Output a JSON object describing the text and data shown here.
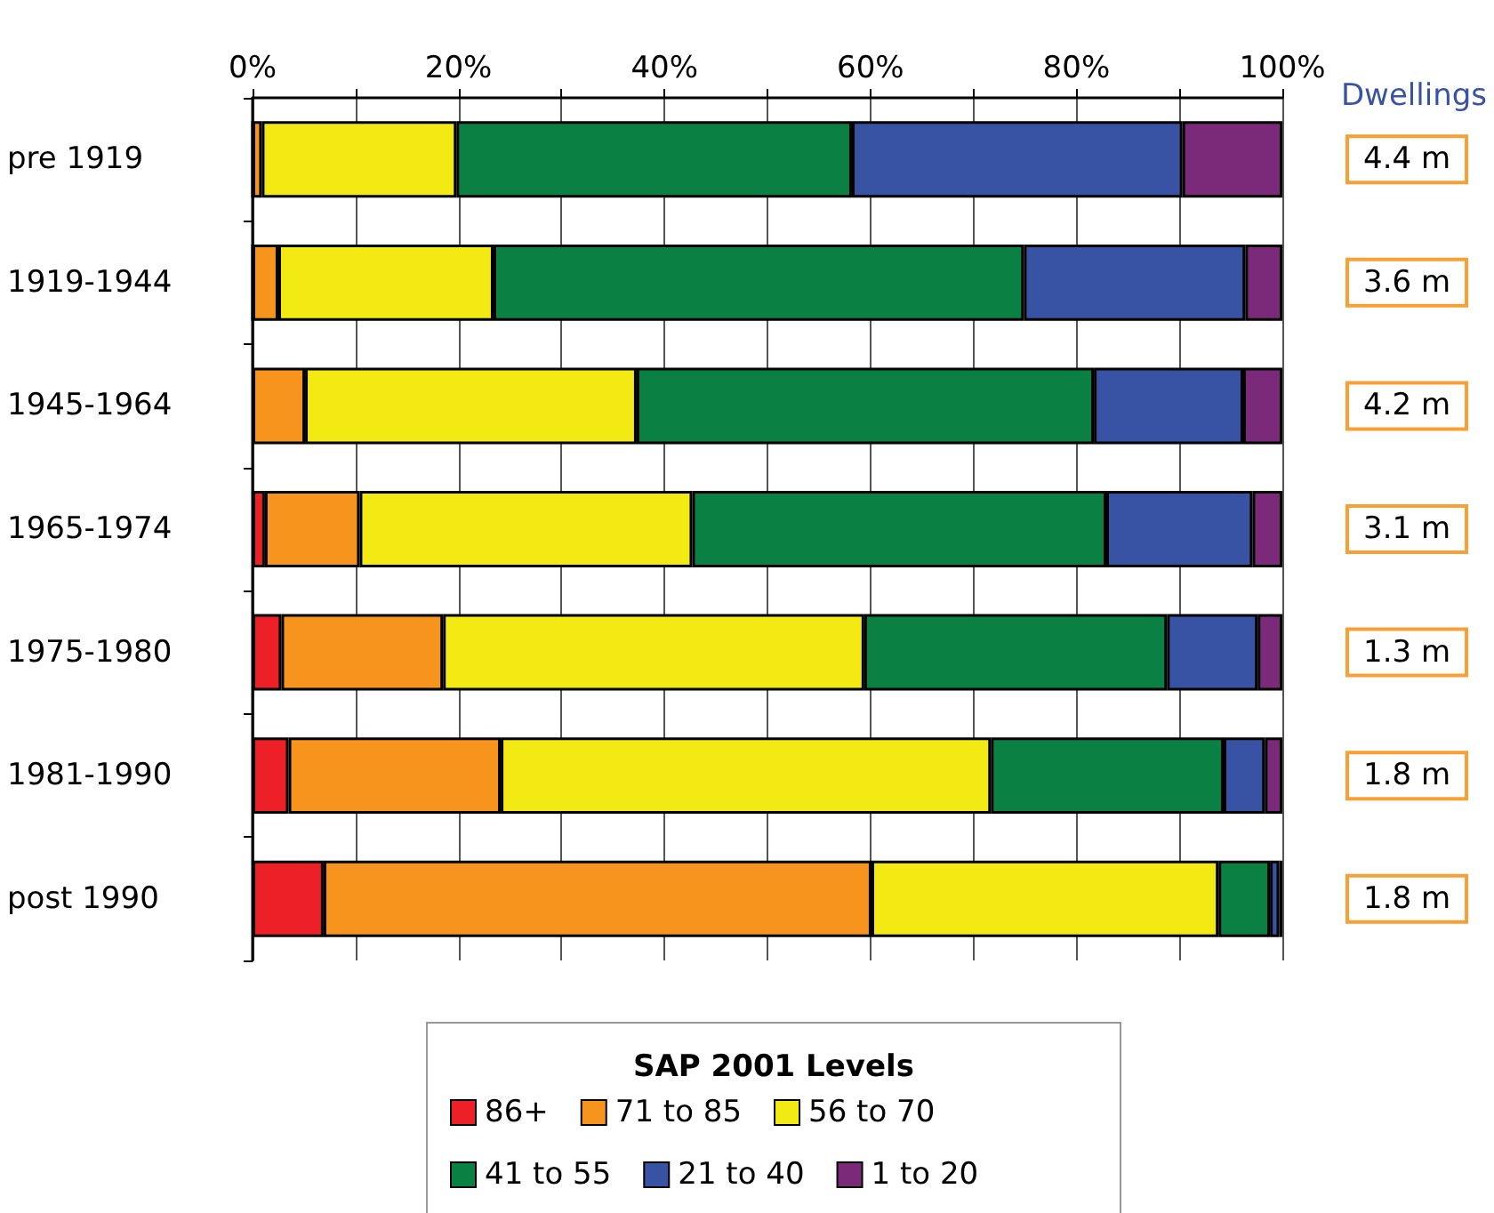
{
  "chart_data": {
    "type": "bar",
    "orientation": "horizontal",
    "stacked": true,
    "categories": [
      "pre 1919",
      "1919-1944",
      "1945-1964",
      "1965-1974",
      "1975-1980",
      "1981-1990",
      "post 1990"
    ],
    "series": [
      {
        "name": "86+",
        "color": "#ed2027",
        "values": [
          0,
          0,
          null,
          1.2,
          2.8,
          3.5,
          6.9
        ]
      },
      {
        "name": "71 to 85",
        "color": "#f7941d",
        "values": [
          0.9,
          2.5,
          5.1,
          9.2,
          15.7,
          20.6,
          53.2
        ]
      },
      {
        "name": "56 to 70",
        "color": "#f4ea13",
        "values": [
          18.9,
          20.9,
          32.2,
          32.3,
          40.9,
          47.6,
          33.7
        ]
      },
      {
        "name": "41 to 55",
        "color": "#0b8043",
        "values": [
          38.4,
          51.5,
          44.4,
          40.2,
          29.4,
          22.6,
          5.0
        ]
      },
      {
        "name": "21 to 40",
        "color": "#3953a4",
        "values": [
          32.1,
          21.5,
          14.5,
          14.2,
          8.8,
          4.0,
          0.9
        ]
      },
      {
        "name": "1 to 20",
        "color": "#7b2a7a",
        "values": [
          9.7,
          3.6,
          3.8,
          2.9,
          2.4,
          1.7,
          0.3
        ]
      }
    ],
    "xlim": [
      0,
      100
    ],
    "xticks": [
      {
        "value": 0,
        "label": "0%"
      },
      {
        "value": 10,
        "label": null
      },
      {
        "value": 20,
        "label": "20%"
      },
      {
        "value": 30,
        "label": null
      },
      {
        "value": 40,
        "label": "40%"
      },
      {
        "value": 50,
        "label": null
      },
      {
        "value": 60,
        "label": "60%"
      },
      {
        "value": 70,
        "label": null
      },
      {
        "value": 80,
        "label": "80%"
      },
      {
        "value": 90,
        "label": null
      },
      {
        "value": 100,
        "label": "100%"
      }
    ],
    "grid": "x",
    "legend": "bottom",
    "legend_title": "SAP 2001 Levels",
    "annotations": [
      "Dwellings",
      "4.4 m",
      "3.6 m",
      "4.2 m",
      "3.1 m",
      "1.3 m",
      "1.8 m",
      "1.8 m"
    ]
  }
}
